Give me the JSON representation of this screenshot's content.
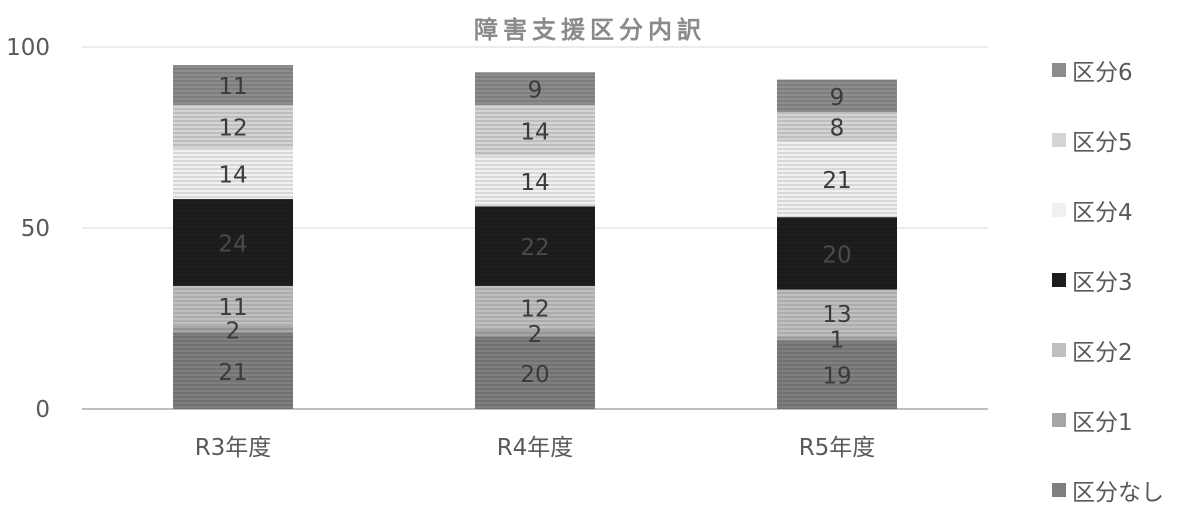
{
  "chart_data": {
    "type": "bar",
    "stacked": true,
    "title": "障害支援区分内訳",
    "categories": [
      "R3年度",
      "R4年度",
      "R5年度"
    ],
    "ylim": [
      0,
      100
    ],
    "yticks": [
      "0",
      "50",
      "100"
    ],
    "grid": true,
    "legend_position": "right",
    "series": [
      {
        "name": "区分なし",
        "values": [
          21,
          20,
          19
        ],
        "color": "#7f7f7f",
        "label_color": "#3a3a3a"
      },
      {
        "name": "区分1",
        "values": [
          2,
          2,
          1
        ],
        "color": "#a6a6a6",
        "label_color": "#3a3a3a"
      },
      {
        "name": "区分2",
        "values": [
          11,
          12,
          13
        ],
        "color": "#bfbfbf",
        "label_color": "#3a3a3a"
      },
      {
        "name": "区分3",
        "values": [
          24,
          22,
          20
        ],
        "color": "#1e1e1e",
        "label_color": "#4a4a4a"
      },
      {
        "name": "区分4",
        "values": [
          14,
          14,
          21
        ],
        "color": "#f0f0f0",
        "label_color": "#3a3a3a"
      },
      {
        "name": "区分5",
        "values": [
          12,
          14,
          8
        ],
        "color": "#d4d4d4",
        "label_color": "#3a3a3a"
      },
      {
        "name": "区分6",
        "values": [
          11,
          9,
          9
        ],
        "color": "#8c8c8c",
        "label_color": "#3a3a3a"
      }
    ]
  }
}
